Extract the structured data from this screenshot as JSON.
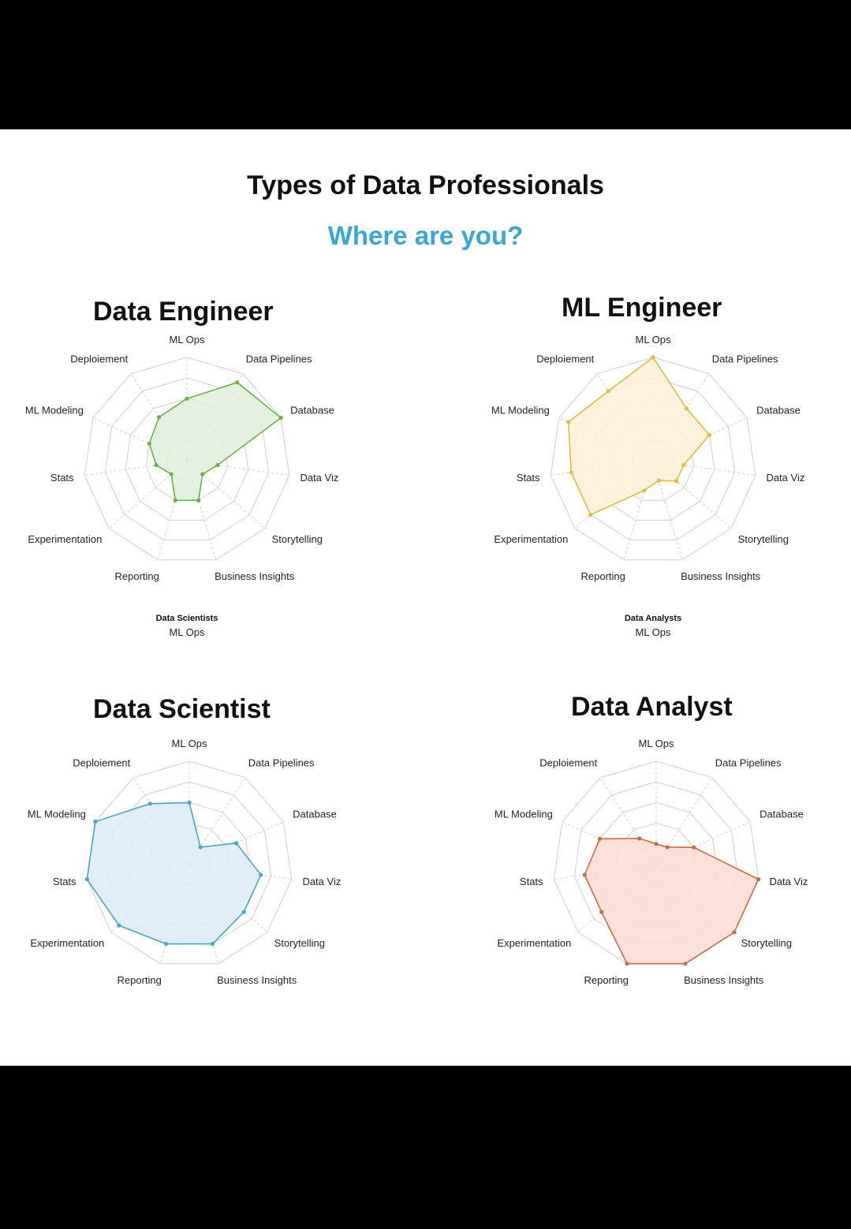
{
  "title": "Types of Data Professionals",
  "subtitle": "Where are you?",
  "axes": [
    "ML Ops",
    "Data Pipelines",
    "Database",
    "Data Viz",
    "Storytelling",
    "Business Insights",
    "Reporting",
    "Experimentation",
    "Stats",
    "ML Modeling",
    "Deploiement"
  ],
  "chart_data": [
    {
      "type": "radar",
      "title": "Data Engineer",
      "rmax": 5,
      "color": "#6ab04c",
      "fill": "#dfeeda",
      "caption_bold": "Data Scientists",
      "caption": "ML Ops",
      "values": [
        3,
        4.5,
        5,
        1.5,
        1,
        2,
        2,
        1,
        1.5,
        2,
        2.5
      ]
    },
    {
      "type": "radar",
      "title": "ML Engineer",
      "rmax": 5,
      "color": "#e3b93f",
      "fill": "#fdf1d6",
      "caption_bold": "Data Analysts",
      "caption": "ML Ops",
      "values": [
        5,
        3,
        3,
        1.5,
        1.5,
        1,
        1.5,
        4,
        4,
        4.5,
        4
      ]
    },
    {
      "type": "radar",
      "title": "Data Scientist",
      "rmax": 5,
      "color": "#4aa4c2",
      "fill": "#dcebf6",
      "values": [
        3,
        1,
        2.5,
        3.5,
        3.5,
        4,
        4,
        4.5,
        5,
        5,
        3.5
      ]
    },
    {
      "type": "radar",
      "title": "Data Analyst",
      "rmax": 5,
      "color": "#cd6a45",
      "fill": "#fcdcd4",
      "values": [
        1,
        1,
        2,
        5,
        5,
        5,
        5,
        3.5,
        3.5,
        3,
        1.5
      ]
    }
  ]
}
